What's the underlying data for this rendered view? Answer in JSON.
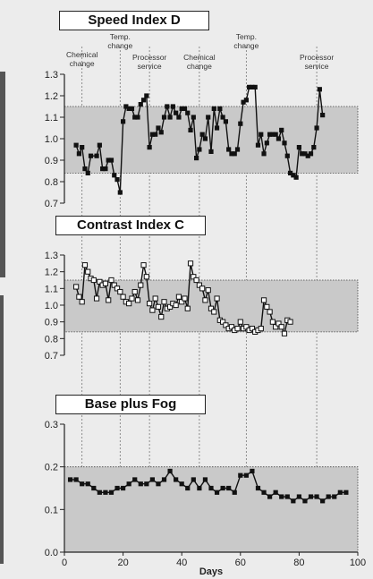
{
  "chart_data": [
    {
      "type": "line",
      "title": "Speed Index D",
      "ylim": [
        0.7,
        1.3
      ],
      "yticks": [
        "0.7",
        "0.8",
        "0.9",
        "1.0",
        "1.1",
        "1.2",
        "1.3"
      ],
      "control_band": [
        0.84,
        1.15
      ],
      "annotations": [
        {
          "x": 6,
          "label": "Chemical change"
        },
        {
          "x": 19,
          "label": "Temp. change"
        },
        {
          "x": 29,
          "label": "Processor service"
        },
        {
          "x": 46,
          "label": "Chemical change"
        },
        {
          "x": 62,
          "label": "Temp. change"
        },
        {
          "x": 86,
          "label": "Processor service"
        }
      ],
      "marker": "filled",
      "series": [
        {
          "points": [
            [
              4,
              0.97
            ],
            [
              5,
              0.93
            ],
            [
              6,
              0.96
            ],
            [
              7,
              0.86
            ],
            [
              8,
              0.84
            ],
            [
              9,
              0.92
            ],
            [
              11,
              0.92
            ],
            [
              12,
              0.97
            ],
            [
              13,
              0.86
            ],
            [
              14,
              0.86
            ],
            [
              15,
              0.9
            ],
            [
              16,
              0.9
            ],
            [
              17,
              0.83
            ],
            [
              18,
              0.81
            ],
            [
              19,
              0.75
            ],
            [
              20,
              1.08
            ],
            [
              21,
              1.15
            ],
            [
              22,
              1.14
            ],
            [
              23,
              1.14
            ],
            [
              24,
              1.1
            ],
            [
              25,
              1.1
            ],
            [
              26,
              1.16
            ],
            [
              27,
              1.18
            ],
            [
              28,
              1.2
            ],
            [
              29,
              0.96
            ],
            [
              30,
              1.02
            ],
            [
              31,
              1.02
            ],
            [
              32,
              1.05
            ],
            [
              33,
              1.03
            ],
            [
              34,
              1.1
            ],
            [
              35,
              1.15
            ],
            [
              36,
              1.1
            ],
            [
              37,
              1.15
            ],
            [
              38,
              1.12
            ],
            [
              39,
              1.1
            ],
            [
              40,
              1.14
            ],
            [
              41,
              1.14
            ],
            [
              42,
              1.12
            ],
            [
              43,
              1.04
            ],
            [
              44,
              1.1
            ],
            [
              45,
              0.91
            ],
            [
              46,
              0.95
            ],
            [
              47,
              1.02
            ],
            [
              48,
              1.0
            ],
            [
              49,
              1.1
            ],
            [
              50,
              0.94
            ],
            [
              51,
              1.14
            ],
            [
              52,
              1.05
            ],
            [
              53,
              1.14
            ],
            [
              54,
              1.1
            ],
            [
              55,
              1.08
            ],
            [
              56,
              0.95
            ],
            [
              57,
              0.93
            ],
            [
              58,
              0.93
            ],
            [
              59,
              0.95
            ],
            [
              60,
              1.07
            ],
            [
              61,
              1.17
            ],
            [
              62,
              1.18
            ],
            [
              63,
              1.24
            ],
            [
              64,
              1.24
            ],
            [
              65,
              1.24
            ],
            [
              66,
              0.97
            ],
            [
              67,
              1.02
            ],
            [
              68,
              0.93
            ],
            [
              69,
              0.98
            ],
            [
              70,
              1.02
            ],
            [
              71,
              1.02
            ],
            [
              72,
              1.02
            ],
            [
              73,
              1.0
            ],
            [
              74,
              1.04
            ],
            [
              75,
              0.98
            ],
            [
              76,
              0.92
            ],
            [
              77,
              0.84
            ],
            [
              78,
              0.83
            ],
            [
              79,
              0.82
            ],
            [
              80,
              0.96
            ],
            [
              81,
              0.93
            ],
            [
              82,
              0.93
            ],
            [
              83,
              0.92
            ],
            [
              84,
              0.93
            ],
            [
              85,
              0.96
            ],
            [
              86,
              1.05
            ],
            [
              87,
              1.23
            ],
            [
              88,
              1.11
            ]
          ]
        }
      ]
    },
    {
      "type": "line",
      "title": "Contrast Index C",
      "ylim": [
        0.7,
        1.3
      ],
      "yticks": [
        "0.7",
        "0.8",
        "0.9",
        "1.0",
        "1.1",
        "1.2",
        "1.3"
      ],
      "control_band": [
        0.84,
        1.15
      ],
      "marker": "open",
      "series": [
        {
          "points": [
            [
              4,
              1.11
            ],
            [
              5,
              1.05
            ],
            [
              6,
              1.02
            ],
            [
              7,
              1.24
            ],
            [
              8,
              1.2
            ],
            [
              9,
              1.16
            ],
            [
              10,
              1.15
            ],
            [
              11,
              1.04
            ],
            [
              12,
              1.14
            ],
            [
              13,
              1.12
            ],
            [
              14,
              1.13
            ],
            [
              15,
              1.03
            ],
            [
              16,
              1.15
            ],
            [
              17,
              1.12
            ],
            [
              18,
              1.1
            ],
            [
              19,
              1.08
            ],
            [
              20,
              1.05
            ],
            [
              21,
              1.02
            ],
            [
              22,
              1.01
            ],
            [
              23,
              1.04
            ],
            [
              24,
              1.08
            ],
            [
              25,
              1.03
            ],
            [
              26,
              1.12
            ],
            [
              27,
              1.24
            ],
            [
              28,
              1.17
            ],
            [
              29,
              1.01
            ],
            [
              30,
              0.97
            ],
            [
              31,
              1.04
            ],
            [
              32,
              0.99
            ],
            [
              33,
              0.93
            ],
            [
              34,
              1.02
            ],
            [
              35,
              0.98
            ],
            [
              36,
              0.99
            ],
            [
              37,
              1.01
            ],
            [
              38,
              1.0
            ],
            [
              39,
              1.05
            ],
            [
              40,
              1.02
            ],
            [
              41,
              1.04
            ],
            [
              42,
              0.98
            ],
            [
              43,
              1.25
            ],
            [
              44,
              1.17
            ],
            [
              45,
              1.15
            ],
            [
              46,
              1.12
            ],
            [
              47,
              1.1
            ],
            [
              48,
              1.03
            ],
            [
              49,
              1.09
            ],
            [
              50,
              0.98
            ],
            [
              51,
              0.96
            ],
            [
              52,
              1.04
            ],
            [
              53,
              0.91
            ],
            [
              54,
              0.9
            ],
            [
              55,
              0.88
            ],
            [
              56,
              0.86
            ],
            [
              57,
              0.87
            ],
            [
              58,
              0.85
            ],
            [
              59,
              0.86
            ],
            [
              60,
              0.9
            ],
            [
              61,
              0.86
            ],
            [
              62,
              0.87
            ],
            [
              63,
              0.85
            ],
            [
              64,
              0.86
            ],
            [
              65,
              0.84
            ],
            [
              66,
              0.85
            ],
            [
              67,
              0.86
            ],
            [
              68,
              1.03
            ],
            [
              69,
              0.99
            ],
            [
              70,
              0.96
            ],
            [
              71,
              0.9
            ],
            [
              72,
              0.87
            ],
            [
              73,
              0.89
            ],
            [
              74,
              0.87
            ],
            [
              75,
              0.83
            ],
            [
              76,
              0.91
            ],
            [
              77,
              0.9
            ]
          ]
        }
      ]
    },
    {
      "type": "line",
      "title": "Base plus Fog",
      "ylim": [
        0.0,
        0.3
      ],
      "yticks": [
        "0.0",
        "0.1",
        "0.2",
        "0.3"
      ],
      "control_band": [
        0.0,
        0.2
      ],
      "xlim": [
        0,
        100
      ],
      "xticks": [
        "0",
        "20",
        "40",
        "60",
        "80",
        "100"
      ],
      "xlabel": "Days",
      "marker": "filled",
      "series": [
        {
          "points": [
            [
              2,
              0.17
            ],
            [
              4,
              0.17
            ],
            [
              6,
              0.16
            ],
            [
              8,
              0.16
            ],
            [
              10,
              0.15
            ],
            [
              12,
              0.14
            ],
            [
              14,
              0.14
            ],
            [
              16,
              0.14
            ],
            [
              18,
              0.15
            ],
            [
              20,
              0.15
            ],
            [
              22,
              0.16
            ],
            [
              24,
              0.17
            ],
            [
              26,
              0.16
            ],
            [
              28,
              0.16
            ],
            [
              30,
              0.17
            ],
            [
              32,
              0.16
            ],
            [
              34,
              0.17
            ],
            [
              36,
              0.19
            ],
            [
              38,
              0.17
            ],
            [
              40,
              0.16
            ],
            [
              42,
              0.15
            ],
            [
              44,
              0.17
            ],
            [
              46,
              0.15
            ],
            [
              48,
              0.17
            ],
            [
              50,
              0.15
            ],
            [
              52,
              0.14
            ],
            [
              54,
              0.15
            ],
            [
              56,
              0.15
            ],
            [
              58,
              0.14
            ],
            [
              60,
              0.18
            ],
            [
              62,
              0.18
            ],
            [
              64,
              0.19
            ],
            [
              66,
              0.15
            ],
            [
              68,
              0.14
            ],
            [
              70,
              0.13
            ],
            [
              72,
              0.14
            ],
            [
              74,
              0.13
            ],
            [
              76,
              0.13
            ],
            [
              78,
              0.12
            ],
            [
              80,
              0.13
            ],
            [
              82,
              0.12
            ],
            [
              84,
              0.13
            ],
            [
              86,
              0.13
            ],
            [
              88,
              0.12
            ],
            [
              90,
              0.13
            ],
            [
              92,
              0.13
            ],
            [
              94,
              0.14
            ],
            [
              96,
              0.14
            ]
          ]
        }
      ]
    }
  ]
}
